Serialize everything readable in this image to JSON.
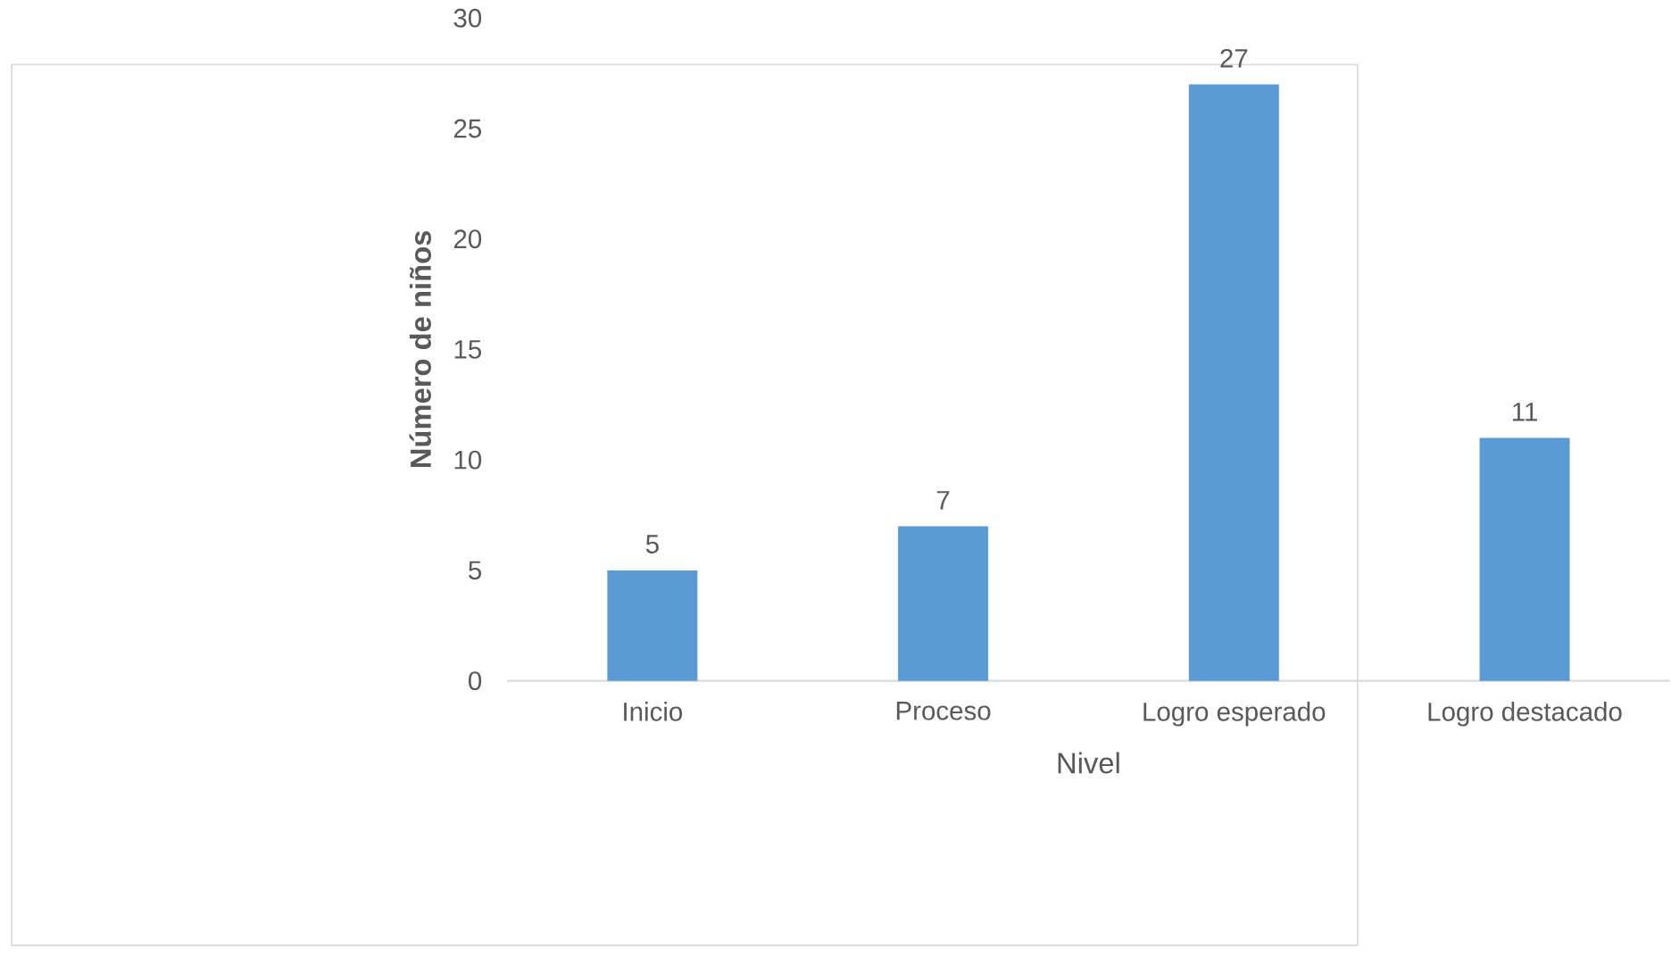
{
  "chart_data": {
    "type": "bar",
    "xlabel": "Nivel",
    "ylabel": "Número de niños",
    "categories": [
      "Inicio",
      "Proceso",
      "Logro esperado",
      "Logro destacado"
    ],
    "values": [
      5,
      7,
      27,
      11
    ],
    "color": "#5b9bd5",
    "ylim": [
      0,
      30
    ],
    "yticks": [
      0,
      5,
      10,
      15,
      20,
      25,
      30
    ],
    "data_labels": true,
    "grid": false
  }
}
